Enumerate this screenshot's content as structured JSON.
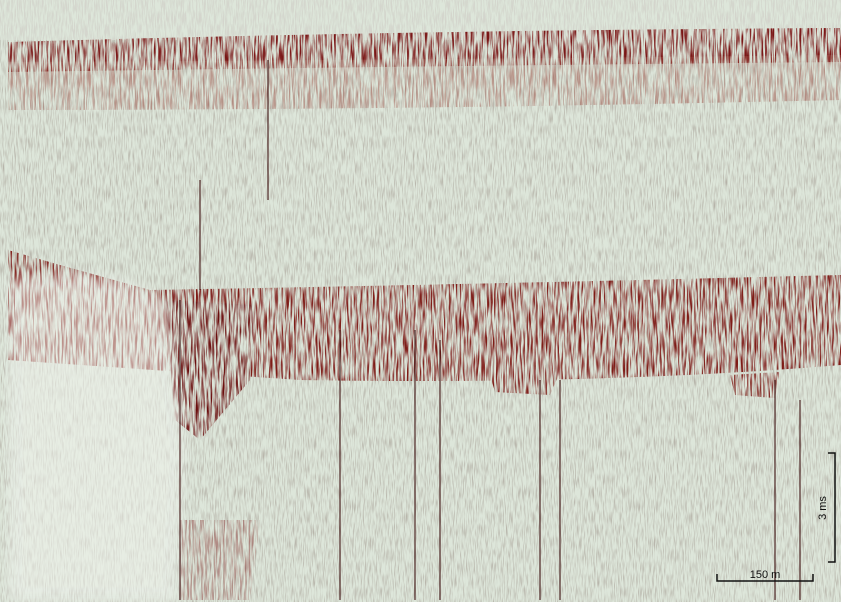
{
  "scale_bars": {
    "horizontal": {
      "label": "150 m"
    },
    "vertical": {
      "label": "3 ms"
    }
  }
}
